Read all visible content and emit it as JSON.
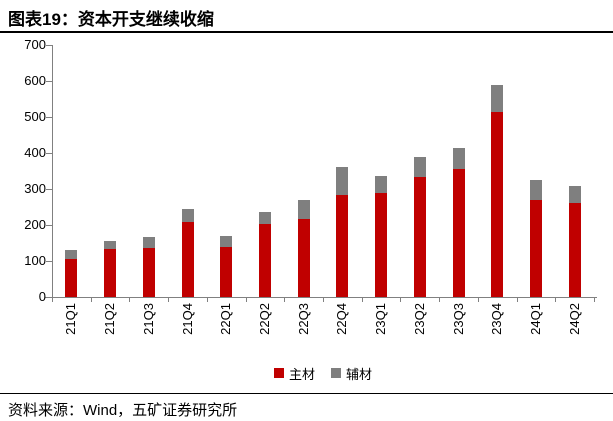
{
  "figure": {
    "title": "图表19：资本开支继续收缩",
    "source": "资料来源：Wind，五矿证券研究所"
  },
  "colors": {
    "main_series": "#c00000",
    "aux_series": "#7f7f7f",
    "axis": "#808080",
    "text": "#000000"
  },
  "chart_data": {
    "type": "bar",
    "stacked": true,
    "title": "资本开支继续收缩",
    "categories": [
      "21Q1",
      "21Q2",
      "21Q3",
      "21Q4",
      "22Q1",
      "22Q2",
      "22Q3",
      "22Q4",
      "23Q1",
      "23Q2",
      "23Q3",
      "23Q4",
      "24Q1",
      "24Q2"
    ],
    "series": [
      {
        "name": "主材",
        "color": "#c00000",
        "values": [
          105,
          132,
          137,
          208,
          140,
          202,
          216,
          282,
          288,
          333,
          355,
          515,
          269,
          262
        ]
      },
      {
        "name": "辅材",
        "color": "#7f7f7f",
        "values": [
          25,
          22,
          30,
          37,
          30,
          34,
          52,
          78,
          46,
          55,
          58,
          75,
          55,
          47
        ]
      }
    ],
    "ylim": [
      0,
      700
    ],
    "yticks": [
      0,
      100,
      200,
      300,
      400,
      500,
      600,
      700
    ],
    "xlabel": "",
    "ylabel": "",
    "grid": false,
    "legend_position": "bottom",
    "x_tick_rotation": -90
  }
}
